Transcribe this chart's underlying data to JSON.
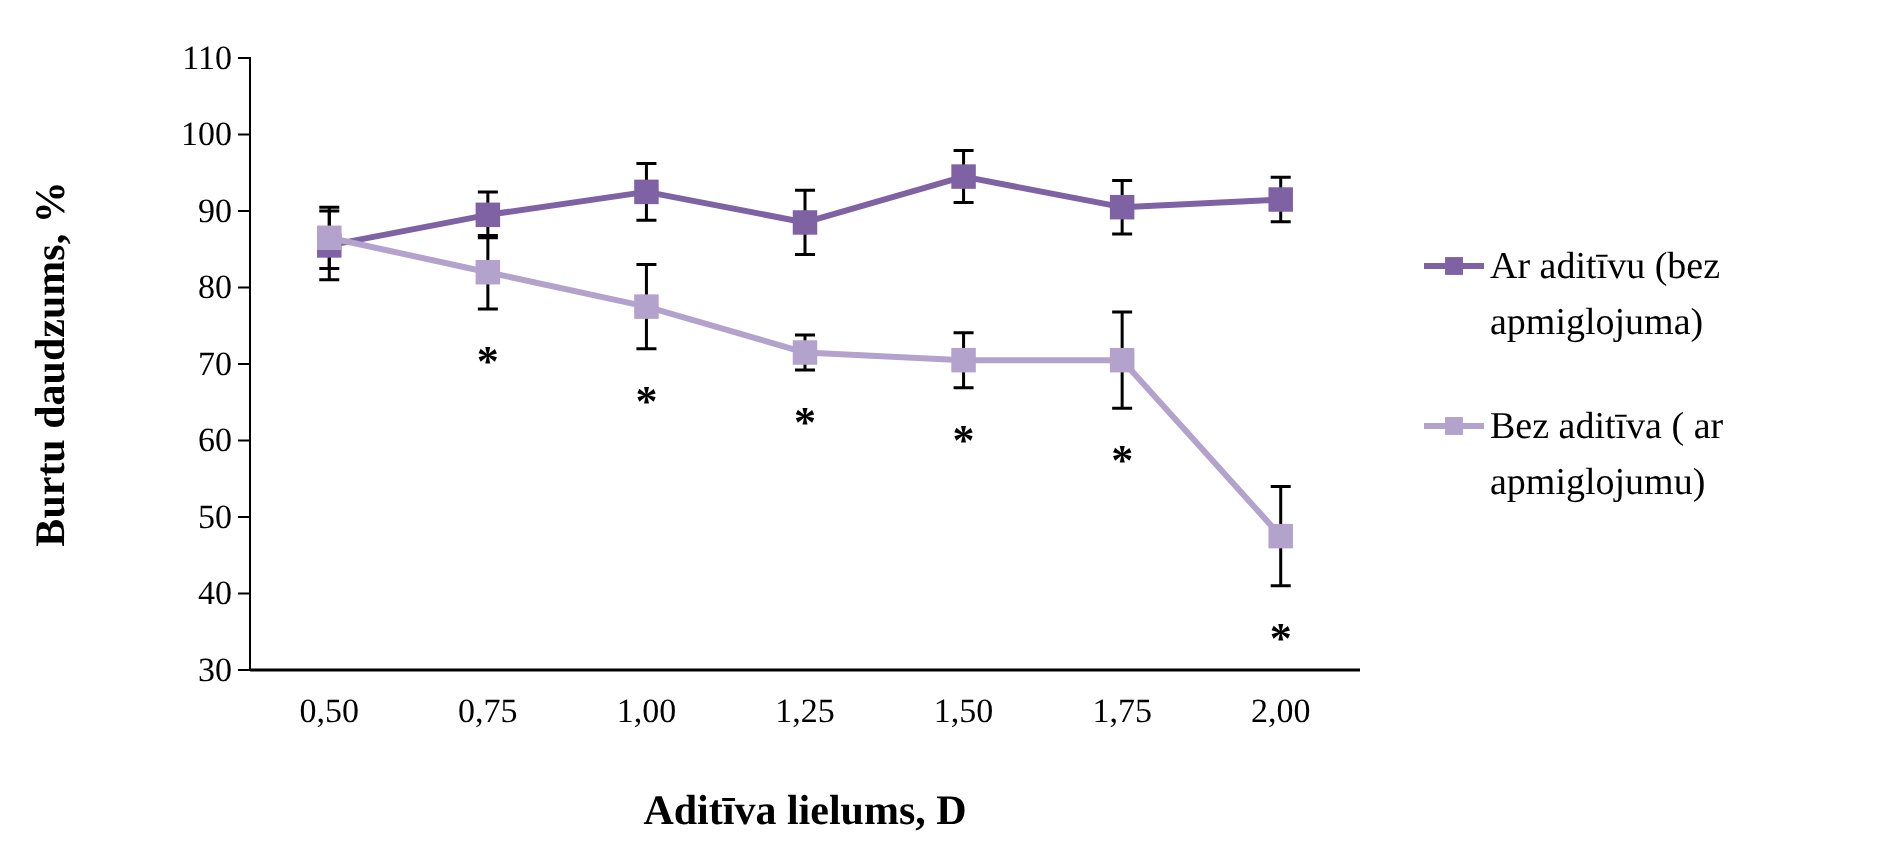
{
  "chart_data": {
    "type": "line",
    "xlabel": "Aditīva lielums, D",
    "ylabel": "Burtu daudzums,  %",
    "categories": [
      "0,50",
      "0,75",
      "1,00",
      "1,25",
      "1,50",
      "1,75",
      "2,00"
    ],
    "series": [
      {
        "name": "Ar aditīvu (bez apmiglojuma)",
        "color": "#7f62a3",
        "values": [
          85.5,
          89.5,
          92.5,
          88.5,
          94.5,
          90.5,
          91.5
        ],
        "errors": [
          4.5,
          3,
          3.7,
          4.2,
          3.4,
          3.5,
          2.9
        ]
      },
      {
        "name": "Bez aditīva ( ar apmiglojumu)",
        "color": "#b3a2cc",
        "values": [
          86.5,
          82,
          77.5,
          71.5,
          70.5,
          70.5,
          47.5
        ],
        "errors": [
          4,
          4.8,
          5.5,
          2.3,
          3.6,
          6.3,
          6.5
        ]
      }
    ],
    "annotations": [
      "*",
      "*",
      "*",
      "*",
      "*",
      "*"
    ],
    "ylim": [
      30,
      110
    ],
    "yticks": [
      30,
      40,
      50,
      60,
      70,
      80,
      90,
      100,
      110
    ],
    "marker": "square",
    "line_style": "solid",
    "legend": "right",
    "grid": false
  }
}
